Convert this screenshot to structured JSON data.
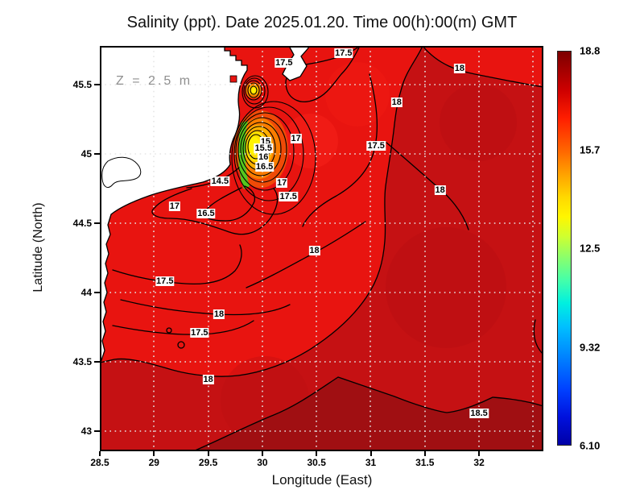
{
  "title": "Salinity (ppt). Date 2025.01.20. Time 00(h):00(m) GMT",
  "annotation": {
    "depth_label": "Z = 2.5 m"
  },
  "axes": {
    "x_label": "Longitude (East)",
    "y_label": "Latitude (North)",
    "x_ticks": [
      "28.5",
      "29",
      "29.5",
      "30",
      "30.5",
      "31",
      "31.5",
      "32"
    ],
    "y_ticks": [
      "45.5",
      "45",
      "44.5",
      "44",
      "43.5",
      "43"
    ]
  },
  "colorbar": {
    "tick_labels": [
      "18.8",
      "15.7",
      "12.5",
      "9.32",
      "6.10"
    ]
  },
  "chart_data": {
    "type": "heatmap",
    "field": "Salinity",
    "units": "ppt",
    "date": "2025.01.20",
    "time": "00(h):00(m) GMT",
    "depth": "Z = 2.5 m",
    "xlabel": "Longitude (East)",
    "ylabel": "Latitude (North)",
    "xlim": [
      28.5,
      32.6
    ],
    "ylim": [
      42.85,
      45.78
    ],
    "x_ticks": [
      28.5,
      29,
      29.5,
      30,
      30.5,
      31,
      31.5,
      32
    ],
    "y_ticks": [
      45.5,
      45,
      44.5,
      44,
      43.5,
      43
    ],
    "grid": "dotted at 0.5 degree intervals",
    "colorbar": {
      "min": 6.1,
      "max": 18.8,
      "tick_values": [
        18.8,
        15.7,
        12.5,
        9.32,
        6.1
      ],
      "colormap": "jet"
    },
    "contour_levels_labeled": [
      14.5,
      15,
      15.5,
      16,
      16.5,
      17,
      17.5,
      18,
      18.5
    ],
    "contour_labels": [
      {
        "value": "17.5",
        "lon": 30.75,
        "lat": 45.73
      },
      {
        "value": "17.5",
        "lon": 30.2,
        "lat": 45.66
      },
      {
        "value": "18",
        "lon": 31.82,
        "lat": 45.62
      },
      {
        "value": "18",
        "lon": 31.24,
        "lat": 45.37
      },
      {
        "value": "17.5",
        "lon": 31.05,
        "lat": 45.06
      },
      {
        "value": "17",
        "lon": 30.31,
        "lat": 45.11
      },
      {
        "value": "15",
        "lon": 30.03,
        "lat": 45.09
      },
      {
        "value": "15.5",
        "lon": 30.01,
        "lat": 45.04
      },
      {
        "value": "16",
        "lon": 30.01,
        "lat": 44.98
      },
      {
        "value": "16.5",
        "lon": 30.02,
        "lat": 44.91
      },
      {
        "value": "14.5",
        "lon": 29.61,
        "lat": 44.8
      },
      {
        "value": "17",
        "lon": 30.18,
        "lat": 44.79
      },
      {
        "value": "17.5",
        "lon": 30.24,
        "lat": 44.69
      },
      {
        "value": "17",
        "lon": 29.19,
        "lat": 44.62
      },
      {
        "value": "16.5",
        "lon": 29.48,
        "lat": 44.57
      },
      {
        "value": "18",
        "lon": 31.64,
        "lat": 44.74
      },
      {
        "value": "18",
        "lon": 30.48,
        "lat": 44.3
      },
      {
        "value": "17.5",
        "lon": 29.1,
        "lat": 44.08
      },
      {
        "value": "18",
        "lon": 29.6,
        "lat": 43.84
      },
      {
        "value": "17.5",
        "lon": 29.42,
        "lat": 43.71
      },
      {
        "value": "18",
        "lon": 29.5,
        "lat": 43.37
      },
      {
        "value": "18.5",
        "lon": 32.0,
        "lat": 43.13
      }
    ],
    "features": {
      "land": "white landmass with black coastline along the west and northwest (Danube delta / Dniester region)",
      "low_salinity_plume": {
        "lon": 29.95,
        "lat": 45.12,
        "approx_min": 14.5,
        "note": "tight nested contours with yellow/orange/green core near river mouth"
      },
      "high_salinity": "values above 18 (darker red) over eastern and southern part, above 18.5 in the south-east"
    }
  }
}
